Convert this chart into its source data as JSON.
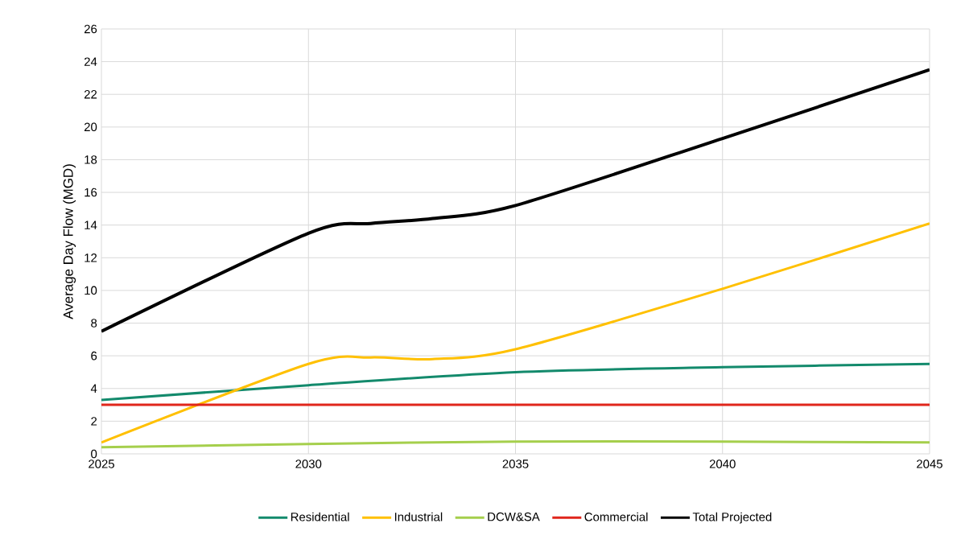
{
  "chart_data": {
    "type": "line",
    "ylabel": "Average Day Flow (MGD)",
    "xlim": [
      2025,
      2045
    ],
    "xticks": [
      2025,
      2030,
      2035,
      2040,
      2045
    ],
    "ylim": [
      0,
      26
    ],
    "yticks": [
      0,
      2,
      4,
      6,
      8,
      10,
      12,
      14,
      16,
      18,
      20,
      22,
      24,
      26
    ],
    "grid": true,
    "legend": "bottom",
    "marker": "none",
    "line_style": "solid",
    "series": [
      {
        "name": "Residential",
        "color": "#138a6c",
        "x": [
          2025,
          2030,
          2035,
          2040,
          2045
        ],
        "values": [
          3.3,
          4.2,
          5.0,
          5.3,
          5.5
        ]
      },
      {
        "name": "Industrial",
        "color": "#ffc000",
        "x": [
          2025,
          2030,
          2031.5,
          2033,
          2035,
          2040,
          2045
        ],
        "values": [
          0.7,
          5.5,
          5.9,
          5.8,
          6.4,
          10.1,
          14.1
        ]
      },
      {
        "name": "DCW&SA",
        "color": "#a5cf4c",
        "x": [
          2025,
          2030,
          2035,
          2040,
          2045
        ],
        "values": [
          0.4,
          0.6,
          0.75,
          0.75,
          0.7
        ]
      },
      {
        "name": "Commercial",
        "color": "#e0261b",
        "x": [
          2025,
          2030,
          2035,
          2040,
          2045
        ],
        "values": [
          3.0,
          3.0,
          3.0,
          3.0,
          3.0
        ]
      },
      {
        "name": "Total Projected",
        "color": "#000000",
        "x": [
          2025,
          2030,
          2031.5,
          2033,
          2035,
          2040,
          2045
        ],
        "values": [
          7.5,
          13.5,
          14.1,
          14.4,
          15.2,
          19.3,
          23.5
        ]
      }
    ]
  }
}
